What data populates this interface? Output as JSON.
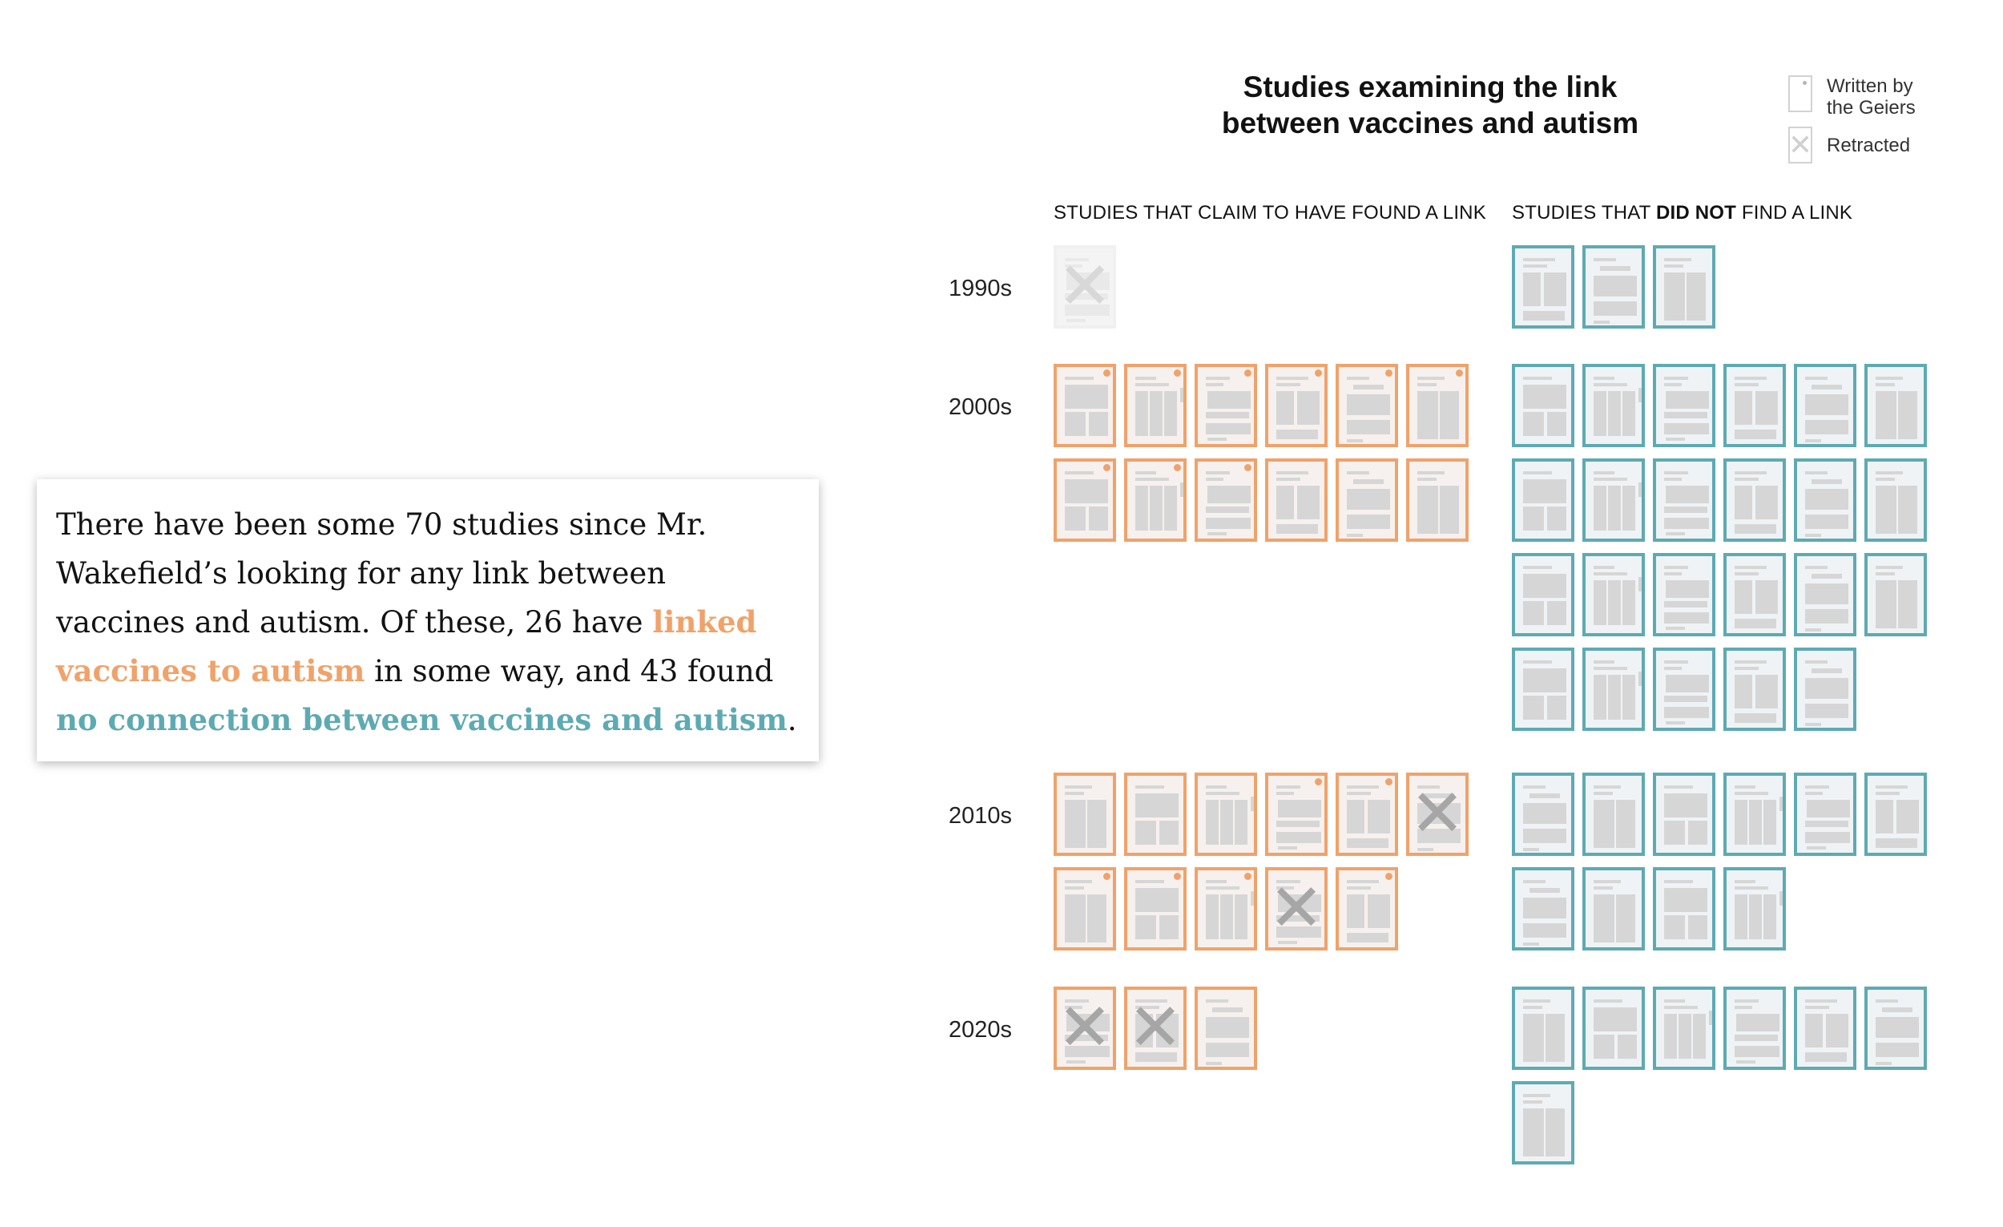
{
  "card": {
    "text_before": "There have been some 70 studies since Mr. Wakefield’s looking for any link between vaccines and autism. Of these, 26 have ",
    "highlight_linked": "linked vaccines to autism",
    "text_middle": " in some way, and 43 found ",
    "highlight_none": "no connection between vaccines and autism",
    "text_end": "."
  },
  "chart": {
    "title_line1": "Studies examining the link",
    "title_line2": "between vaccines and autism",
    "legend": {
      "geiers_line1": "Written by",
      "geiers_line2": "the Geiers",
      "retracted": "Retracted"
    },
    "col_link_header": "STUDIES THAT CLAIM TO HAVE FOUND A LINK",
    "col_nolink_prefix": "STUDIES THAT ",
    "col_nolink_bold": "DID NOT",
    "col_nolink_suffix": " FIND A LINK",
    "colors": {
      "link": "#f0a26a",
      "no_link": "#5eaab3"
    }
  },
  "chart_data": {
    "type": "table",
    "decades": [
      {
        "label": "1990s",
        "link": [
          {
            "geiers": false,
            "retracted": true
          }
        ],
        "no_link": 3
      },
      {
        "label": "2000s",
        "link": [
          {
            "geiers": true,
            "retracted": false
          },
          {
            "geiers": true,
            "retracted": false
          },
          {
            "geiers": true,
            "retracted": false
          },
          {
            "geiers": true,
            "retracted": false
          },
          {
            "geiers": true,
            "retracted": false
          },
          {
            "geiers": true,
            "retracted": false
          },
          {
            "geiers": true,
            "retracted": false
          },
          {
            "geiers": true,
            "retracted": false
          },
          {
            "geiers": true,
            "retracted": false
          },
          {
            "geiers": false,
            "retracted": false
          },
          {
            "geiers": false,
            "retracted": false
          },
          {
            "geiers": false,
            "retracted": false
          }
        ],
        "no_link": 23
      },
      {
        "label": "2010s",
        "link": [
          {
            "geiers": false,
            "retracted": false
          },
          {
            "geiers": false,
            "retracted": false
          },
          {
            "geiers": false,
            "retracted": false
          },
          {
            "geiers": true,
            "retracted": false
          },
          {
            "geiers": true,
            "retracted": false
          },
          {
            "geiers": false,
            "retracted": true
          },
          {
            "geiers": true,
            "retracted": false
          },
          {
            "geiers": true,
            "retracted": false
          },
          {
            "geiers": true,
            "retracted": false
          },
          {
            "geiers": false,
            "retracted": true
          },
          {
            "geiers": true,
            "retracted": false
          }
        ],
        "no_link": 10
      },
      {
        "label": "2020s",
        "link": [
          {
            "geiers": false,
            "retracted": true
          },
          {
            "geiers": false,
            "retracted": true
          },
          {
            "geiers": false,
            "retracted": false
          }
        ],
        "no_link": 7
      }
    ]
  }
}
